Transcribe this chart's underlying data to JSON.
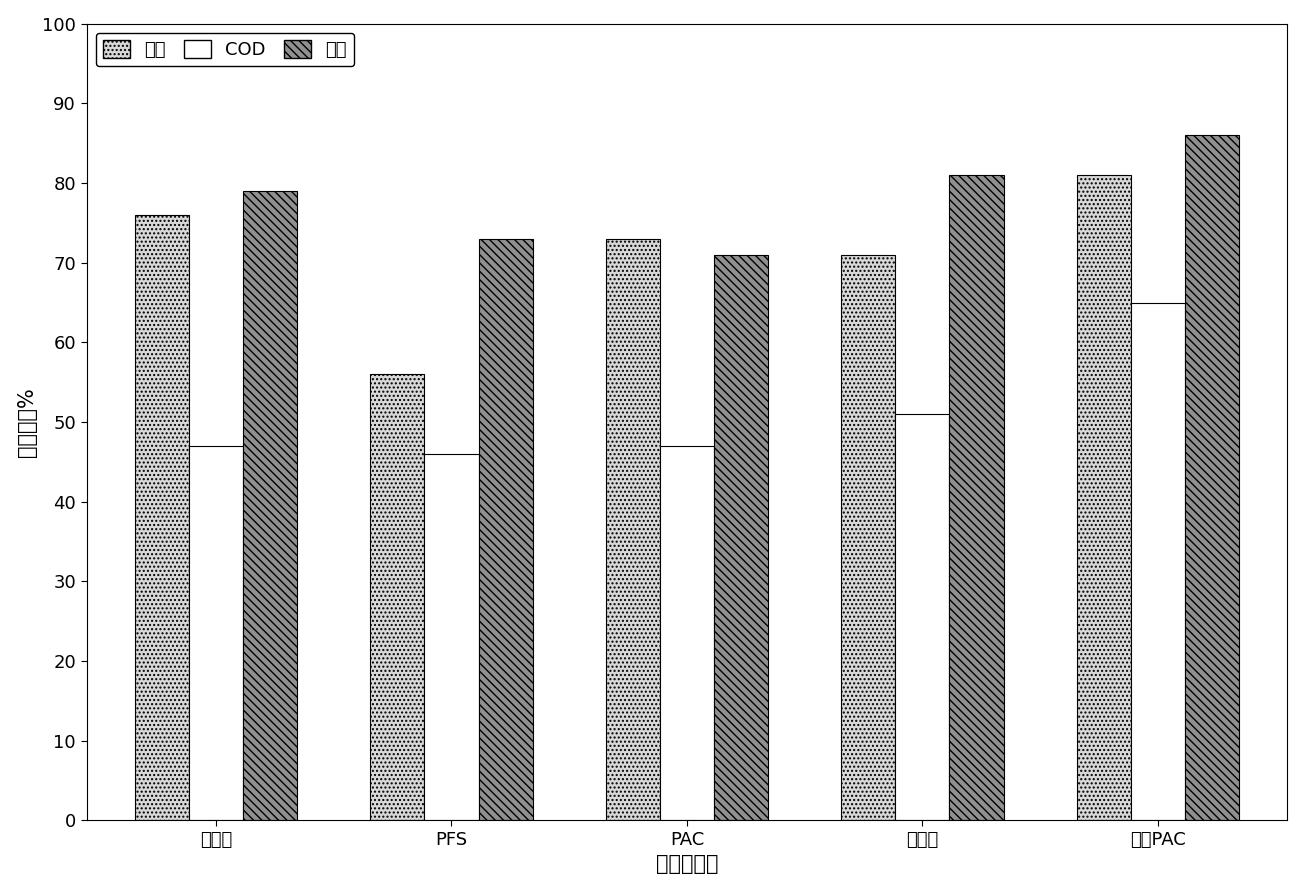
{
  "categories": [
    "硫酸铝",
    "PFS",
    "PAC",
    "高分子",
    "改性PAC"
  ],
  "series": {
    "浊度": [
      76,
      56,
      73,
      71,
      81
    ],
    "COD": [
      47,
      46,
      47,
      51,
      65
    ],
    "总磷": [
      79,
      73,
      71,
      81,
      86
    ]
  },
  "legend_labels": [
    "浊度",
    "COD",
    "总磷"
  ],
  "xlabel": "絮凝剂种类",
  "ylabel": "去除率，%",
  "ylim": [
    0,
    100
  ],
  "yticks": [
    0,
    10,
    20,
    30,
    40,
    50,
    60,
    70,
    80,
    90,
    100
  ],
  "xlabel_fontsize": 15,
  "ylabel_fontsize": 15,
  "tick_fontsize": 13,
  "legend_fontsize": 13,
  "bar_width": 0.23,
  "background_color": "#ffffff"
}
